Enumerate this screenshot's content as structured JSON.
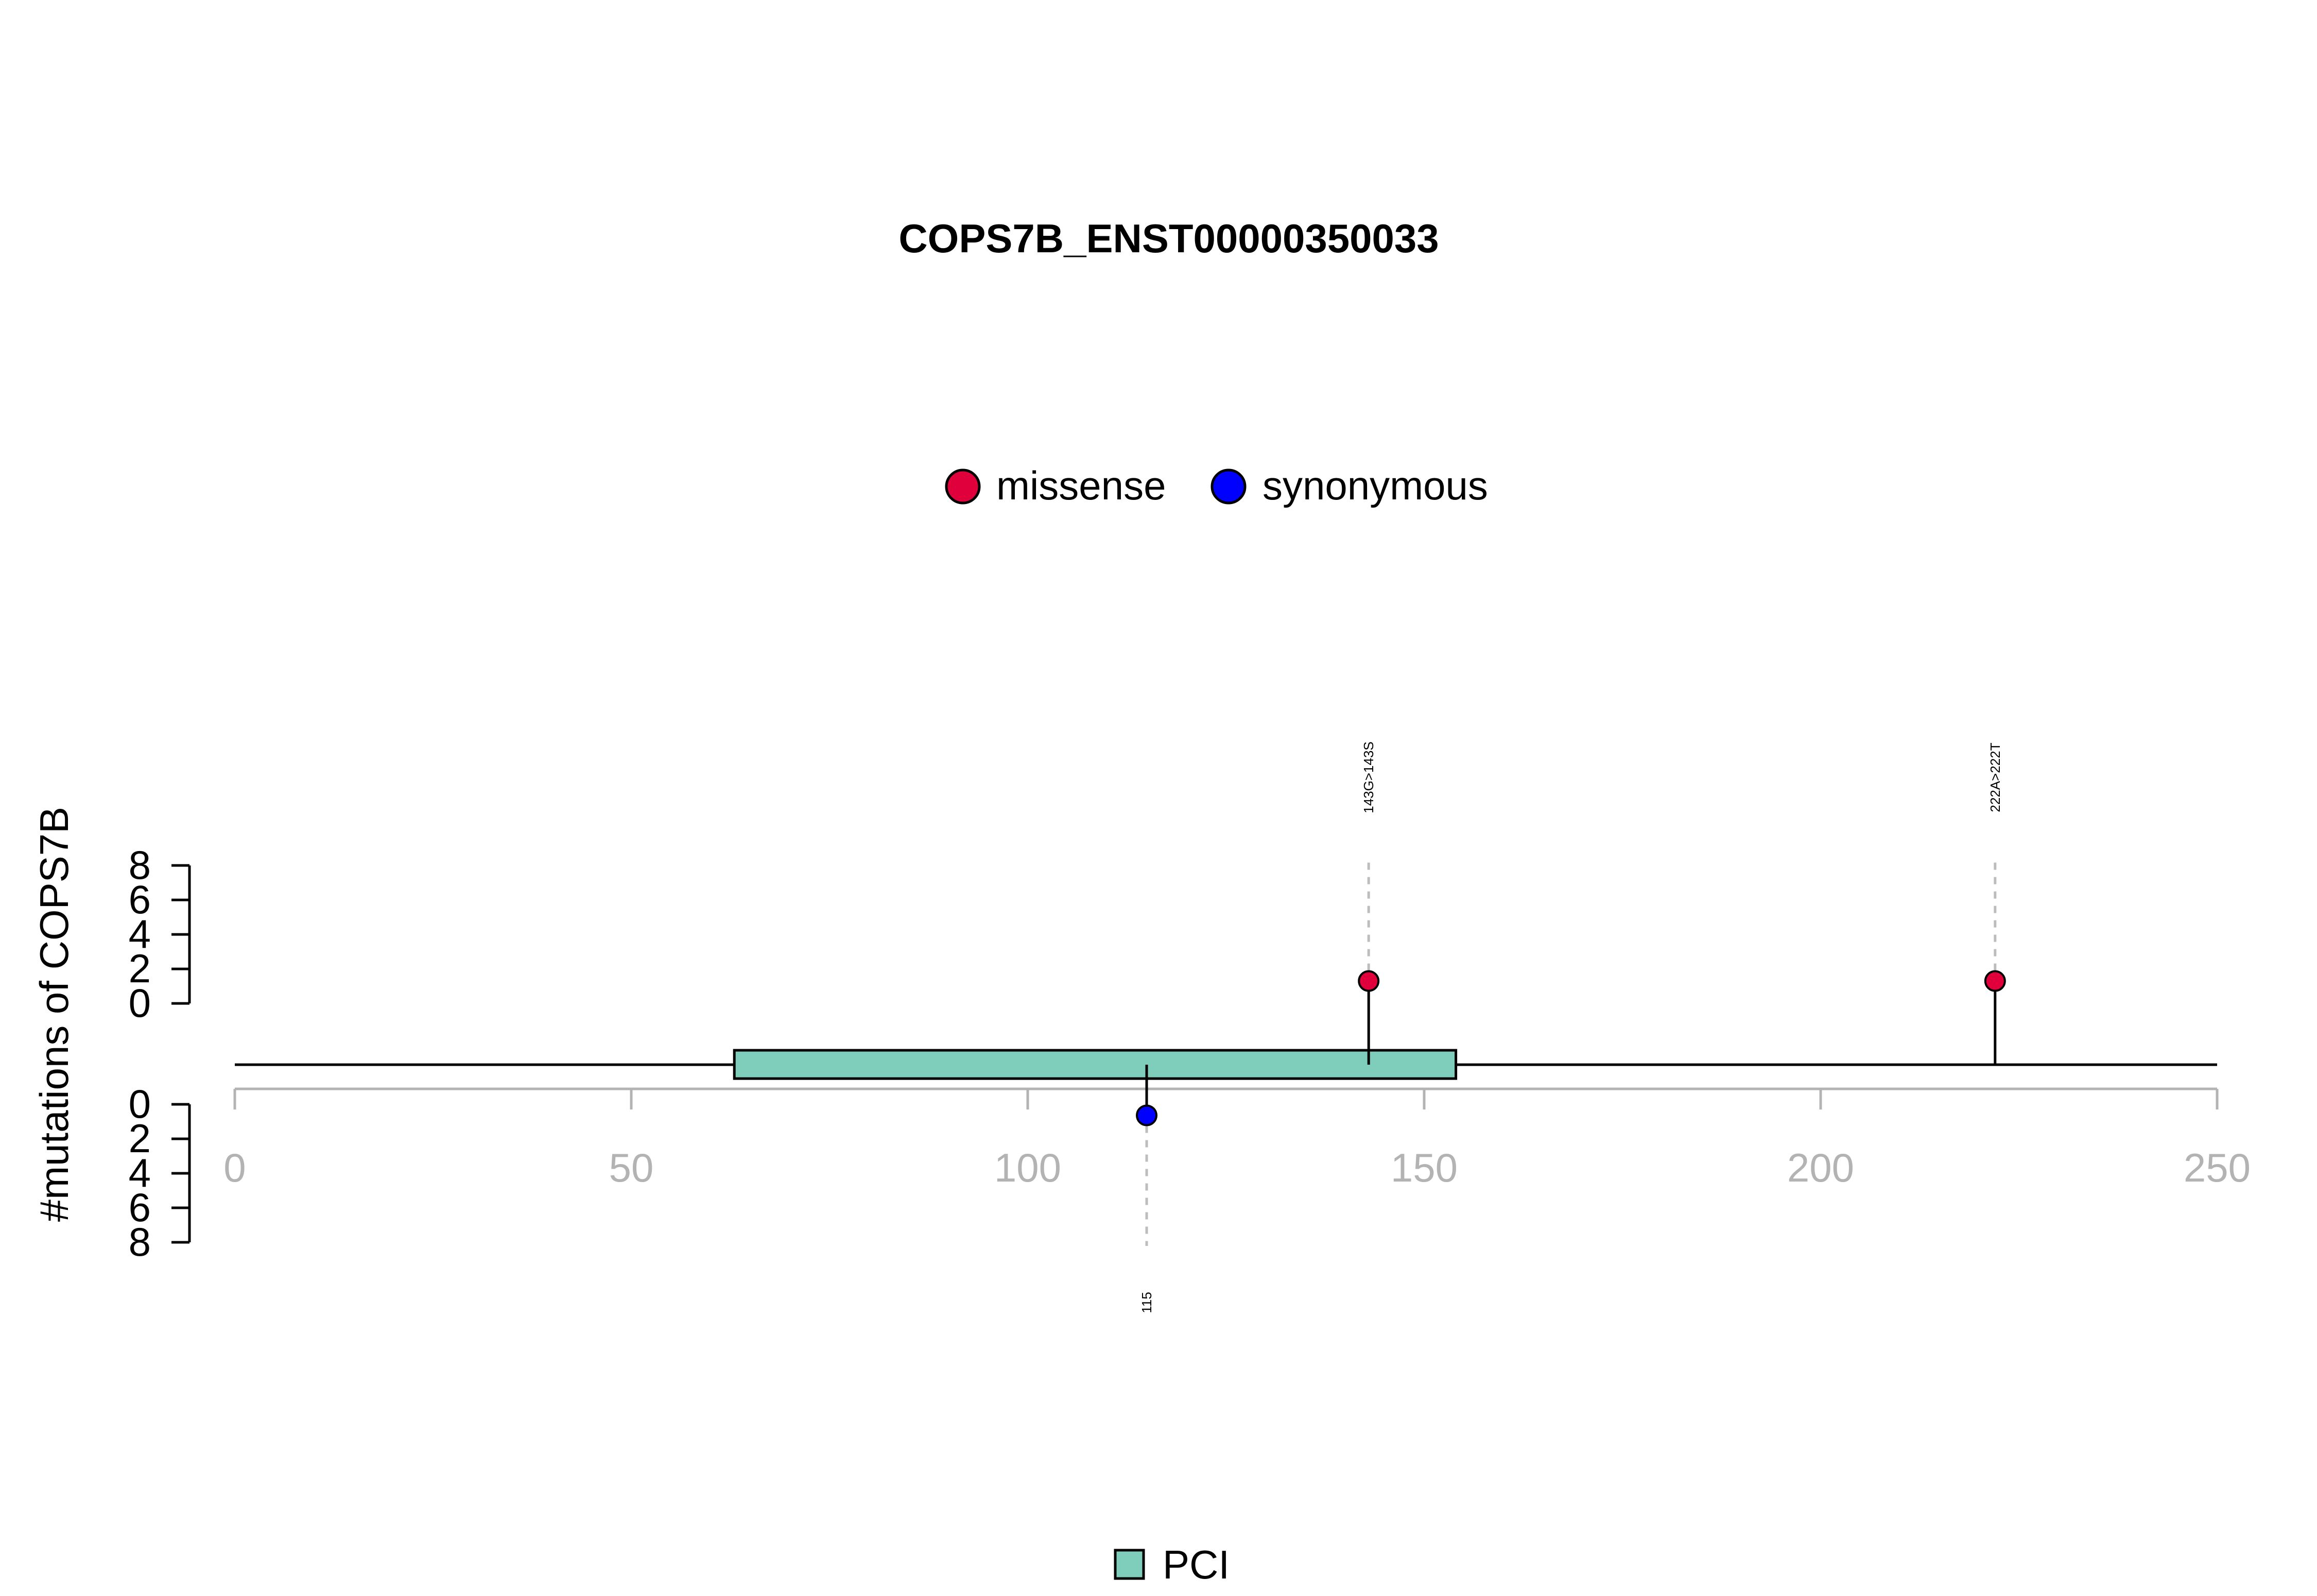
{
  "chart_data": {
    "type": "lollipop",
    "title": "COPS7B_ENST00000350033",
    "ylabel": "#mutations of COPS7B",
    "xlim": [
      0,
      250
    ],
    "x_ticks": [
      "0",
      "50",
      "100",
      "150",
      "200",
      "250"
    ],
    "y_ticks_upper": [
      "0",
      "2",
      "4",
      "6",
      "8"
    ],
    "y_ticks_lower": [
      "0",
      "2",
      "4",
      "6",
      "8"
    ],
    "ylim": [
      0,
      8
    ],
    "protein_length": 250,
    "legend": [
      {
        "label": "missense",
        "color": "#e0003c"
      },
      {
        "label": "synonymous",
        "color": "#0000ff"
      }
    ],
    "domains": [
      {
        "name": "PCI",
        "start": 63,
        "end": 154,
        "color": "#7fcdbb"
      }
    ],
    "mutations": [
      {
        "position": 143,
        "count": 1,
        "type": "missense",
        "label": "143G>143S",
        "side": "upper"
      },
      {
        "position": 222,
        "count": 1,
        "type": "missense",
        "label": "222A>222T",
        "side": "upper"
      },
      {
        "position": 115,
        "count": 1,
        "type": "synonymous",
        "label": "115",
        "side": "lower"
      }
    ],
    "domain_legend": [
      {
        "label": "PCI",
        "color": "#7fcdbb"
      }
    ],
    "colors": {
      "missense": "#e0003c",
      "synonymous": "#0000ff",
      "axis_gray": "#b3b3b3",
      "dash_gray": "#bdbdbd"
    }
  }
}
